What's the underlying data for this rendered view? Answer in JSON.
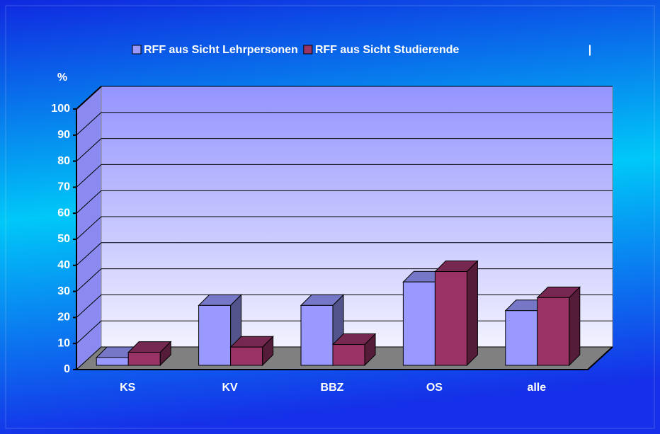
{
  "chart_data": {
    "type": "bar3d",
    "y_label": "%",
    "legend_separator": "|",
    "categories": [
      "KS",
      "KV",
      "BBZ",
      "OS",
      "alle"
    ],
    "series": [
      {
        "name": "RFF aus Sicht Lehrpersonen",
        "color": "#9999ff",
        "values": [
          3,
          23,
          23,
          32,
          21
        ]
      },
      {
        "name": "RFF aus Sicht Studierende",
        "color": "#993366",
        "values": [
          5,
          7,
          8,
          36,
          26
        ]
      }
    ],
    "ylim": [
      0,
      100
    ],
    "yticks": [
      0,
      10,
      20,
      30,
      40,
      50,
      60,
      70,
      80,
      90,
      100
    ],
    "grid": true,
    "legend": "top"
  }
}
